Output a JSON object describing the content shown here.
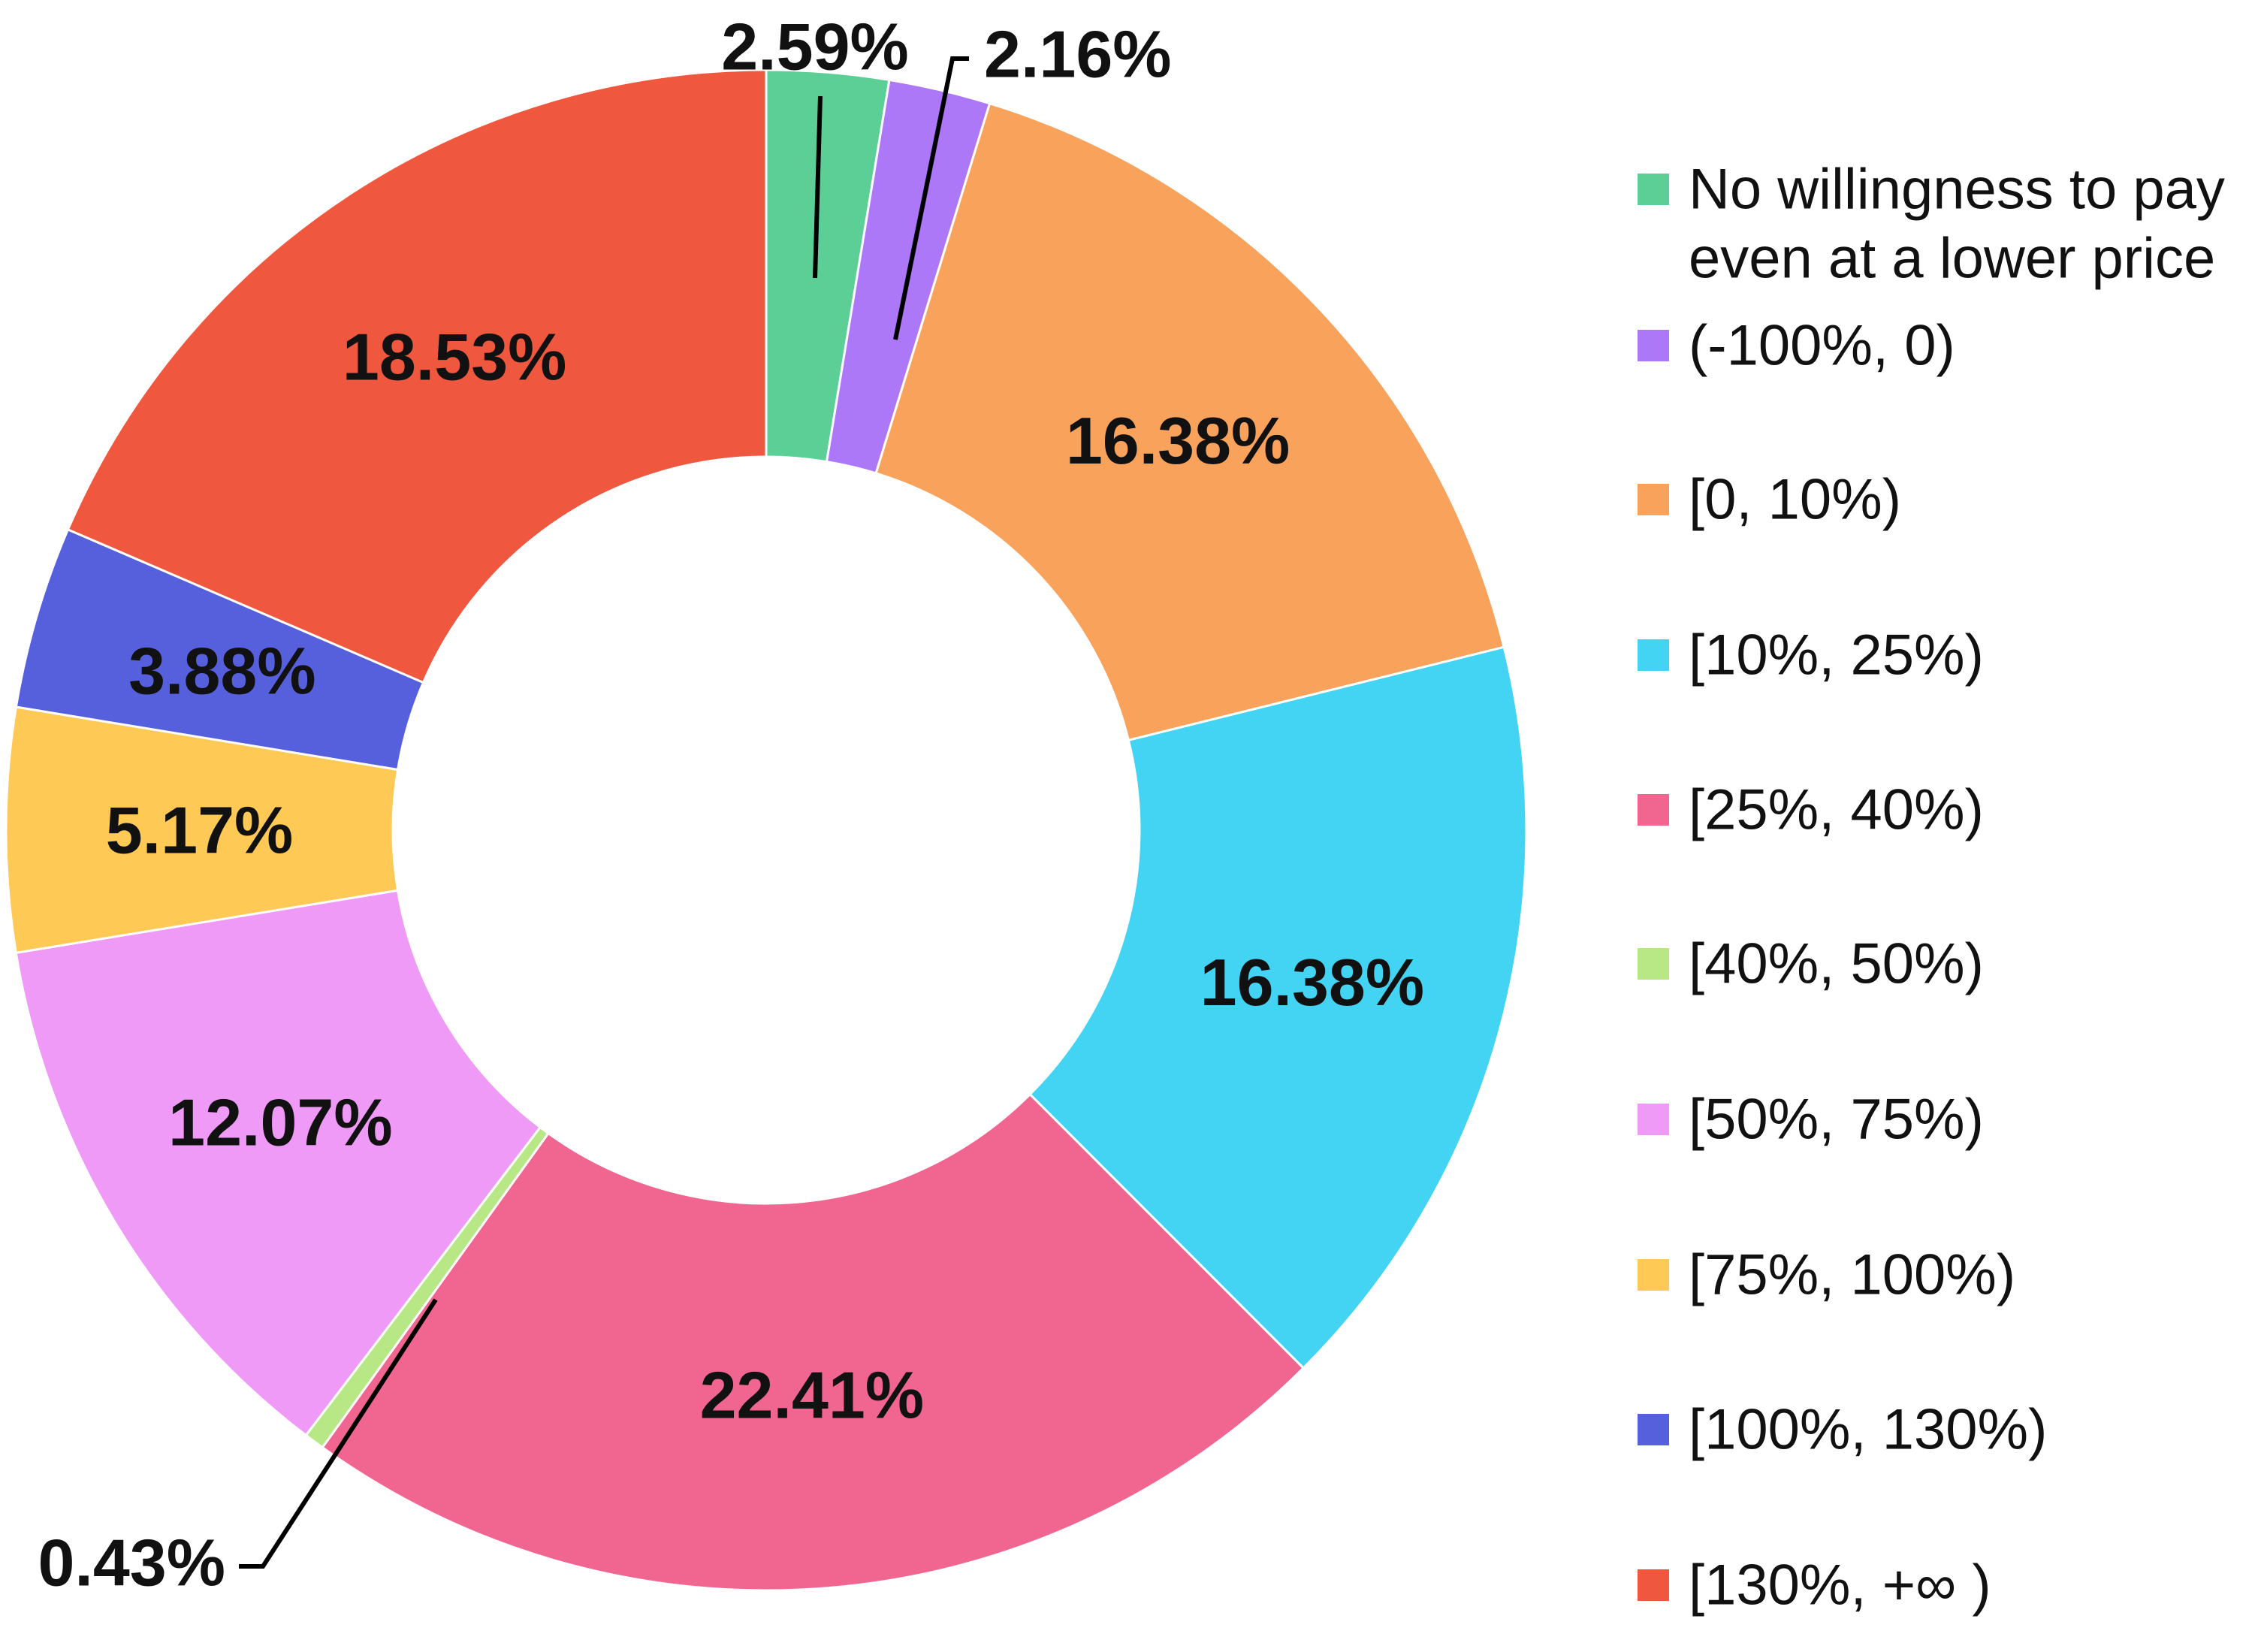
{
  "chart_data": {
    "type": "pie",
    "variant": "donut",
    "legend_position": "right",
    "slices": [
      {
        "name": "No willingness to pay even at a lower price",
        "legend_lines": [
          "No willingness to pay",
          "even at a lower price"
        ],
        "value": 2.59,
        "label": "2.59%",
        "color": "#5ccf96"
      },
      {
        "name": "(-100%, 0)",
        "legend_lines": [
          "(-100%, 0)"
        ],
        "value": 2.16,
        "label": "2.16%",
        "color": "#ad78f7"
      },
      {
        "name": "[0, 10%)",
        "legend_lines": [
          "[0, 10%)"
        ],
        "value": 16.38,
        "label": "16.38%",
        "color": "#f8a25b"
      },
      {
        "name": "[10%, 25%)",
        "legend_lines": [
          "[10%, 25%)"
        ],
        "value": 16.38,
        "label": "16.38%",
        "color": "#43d3f3"
      },
      {
        "name": "[25%, 40%)",
        "legend_lines": [
          "[25%, 40%)"
        ],
        "value": 22.41,
        "label": "22.41%",
        "color": "#f16690"
      },
      {
        "name": "[40%, 50%)",
        "legend_lines": [
          "[40%, 50%)"
        ],
        "value": 0.43,
        "label": "0.43%",
        "color": "#b8e786"
      },
      {
        "name": "[50%, 75%)",
        "legend_lines": [
          "[50%, 75%)"
        ],
        "value": 12.07,
        "label": "12.07%",
        "color": "#f09af8"
      },
      {
        "name": "[75%, 100%)",
        "legend_lines": [
          "[75%, 100%)"
        ],
        "value": 5.17,
        "label": "5.17%",
        "color": "#fec955"
      },
      {
        "name": "[100%, 130%)",
        "legend_lines": [
          "[100%, 130%)"
        ],
        "value": 3.88,
        "label": "3.88%",
        "color": "#5660dd"
      },
      {
        "name": "[130%, +∞ )",
        "legend_lines": [
          "[130%, +∞ )"
        ],
        "value": 18.53,
        "label": "18.53%",
        "color": "#f0573f"
      }
    ]
  }
}
